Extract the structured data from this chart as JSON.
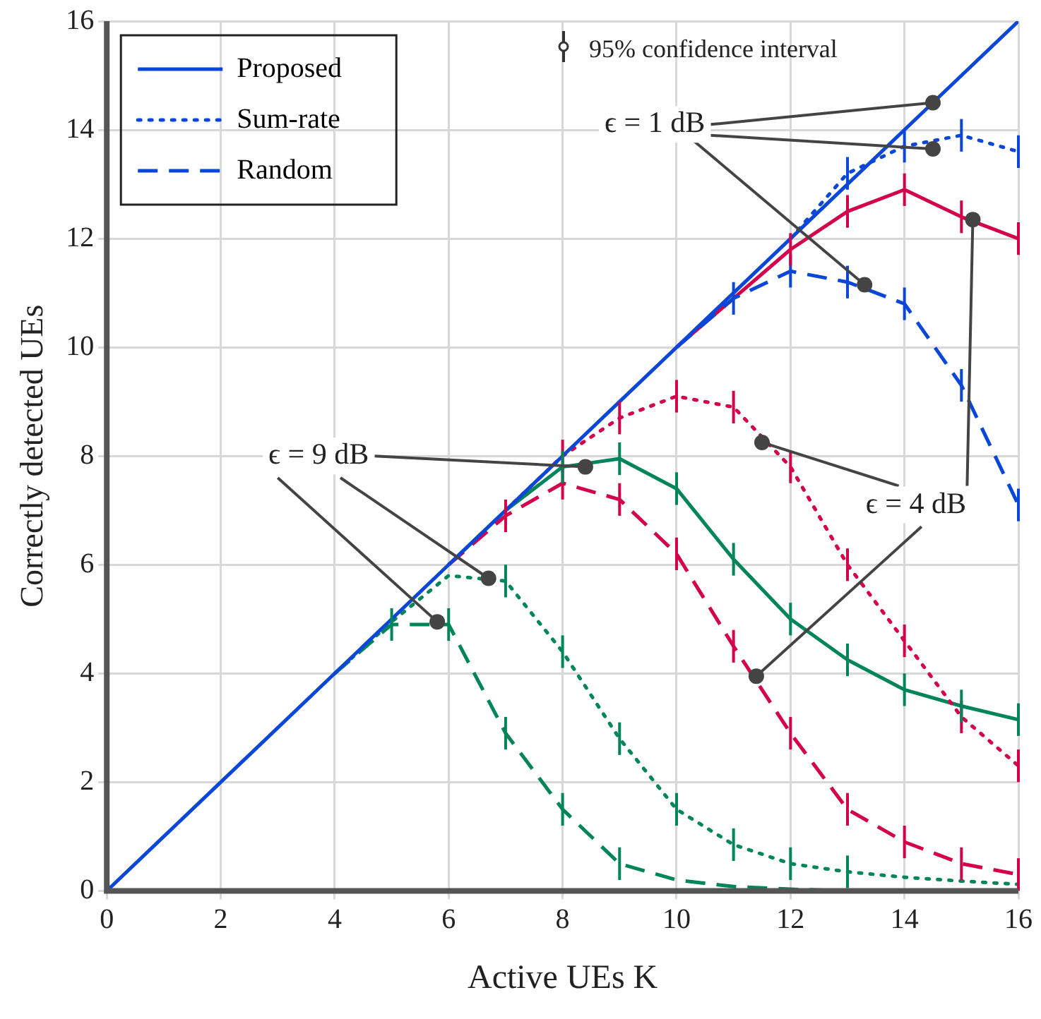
{
  "chart_data": {
    "type": "line",
    "xlabel": "Active UEs K",
    "ylabel": "Correctly detected UEs",
    "x": [
      0,
      1,
      2,
      3,
      4,
      5,
      6,
      7,
      8,
      9,
      10,
      11,
      12,
      13,
      14,
      15,
      16
    ],
    "xlim": [
      0,
      16
    ],
    "xticks": [
      0,
      2,
      4,
      6,
      8,
      10,
      12,
      14,
      16
    ],
    "ylim": [
      0,
      16
    ],
    "yticks": [
      0,
      2,
      4,
      6,
      8,
      10,
      12,
      14,
      16
    ],
    "grid": true,
    "legend": "top left",
    "marker": "none",
    "annotations": [
      "95% confidence interval",
      {
        "text": "ϵ = 1 dB",
        "x": 14.5,
        "y": 14.5
      },
      {
        "text": "ϵ = 4 dB",
        "x": 15.2,
        "y": 12.35
      },
      {
        "text": "ϵ = 9 dB",
        "x": 8.4,
        "y": 7.8
      }
    ],
    "series": [
      {
        "name": "Proposed",
        "color": "#0a47d8",
        "line_style": "solid",
        "values": [
          0,
          1,
          2,
          3,
          4,
          5,
          6,
          7,
          8,
          9,
          10,
          11,
          12,
          13,
          14,
          15,
          16
        ]
      },
      {
        "name": "Sum-rate",
        "color": "#0a47d8",
        "line_style": "dotted",
        "values": [
          null,
          null,
          null,
          null,
          null,
          null,
          null,
          null,
          null,
          null,
          null,
          null,
          12,
          13.2,
          13.7,
          13.9,
          13.6
        ],
        "errors": [
          null,
          null,
          null,
          null,
          null,
          null,
          null,
          null,
          null,
          null,
          null,
          null,
          null,
          0.3,
          0.3,
          0.3,
          0.3
        ]
      },
      {
        "name": "Random",
        "color": "#0a47d8",
        "line_style": "dashed",
        "values": [
          null,
          null,
          null,
          null,
          null,
          null,
          null,
          null,
          null,
          null,
          10,
          10.9,
          11.4,
          11.2,
          10.8,
          9.3,
          7.1
        ],
        "errors": [
          null,
          null,
          null,
          null,
          null,
          null,
          null,
          null,
          null,
          null,
          null,
          0.3,
          0.3,
          0.3,
          0.3,
          0.3,
          0.3
        ]
      },
      {
        "color": "#d4004a",
        "line_style": "solid",
        "values": [
          null,
          null,
          null,
          null,
          null,
          null,
          null,
          null,
          null,
          null,
          10,
          10.9,
          11.8,
          12.5,
          12.9,
          12.4,
          12.0
        ],
        "errors": [
          null,
          null,
          null,
          null,
          null,
          null,
          null,
          null,
          null,
          null,
          null,
          null,
          0.3,
          0.3,
          0.3,
          0.3,
          0.3
        ]
      },
      {
        "color": "#d4004a",
        "line_style": "dotted",
        "values": [
          null,
          null,
          null,
          null,
          null,
          null,
          null,
          7,
          8,
          8.7,
          9.1,
          8.9,
          7.8,
          6.0,
          4.6,
          3.2,
          2.3
        ],
        "errors": [
          null,
          null,
          null,
          null,
          null,
          null,
          null,
          null,
          0.3,
          0.3,
          0.3,
          0.3,
          0.3,
          0.3,
          0.3,
          0.3,
          0.3
        ]
      },
      {
        "color": "#d4004a",
        "line_style": "dashed",
        "values": [
          null,
          null,
          null,
          null,
          null,
          null,
          6,
          6.9,
          7.5,
          7.2,
          6.2,
          4.5,
          2.9,
          1.5,
          0.9,
          0.5,
          0.3
        ],
        "errors": [
          null,
          null,
          null,
          null,
          null,
          null,
          null,
          0.3,
          0.3,
          0.3,
          0.3,
          0.3,
          0.3,
          0.3,
          0.3,
          0.3,
          0.3
        ]
      },
      {
        "color": "#00845a",
        "line_style": "solid",
        "values": [
          null,
          null,
          null,
          null,
          null,
          null,
          6,
          7,
          7.8,
          7.95,
          7.4,
          6.1,
          5.0,
          4.25,
          3.7,
          3.4,
          3.15
        ],
        "errors": [
          null,
          null,
          null,
          null,
          null,
          null,
          null,
          null,
          0.3,
          0.3,
          0.3,
          0.3,
          0.3,
          0.3,
          0.3,
          0.3,
          0.3
        ]
      },
      {
        "color": "#00845a",
        "line_style": "dotted",
        "values": [
          null,
          null,
          null,
          null,
          4,
          4.95,
          5.8,
          5.7,
          4.4,
          2.8,
          1.5,
          0.85,
          0.5,
          0.35,
          0.25,
          0.18,
          0.12
        ],
        "errors": [
          null,
          null,
          null,
          null,
          null,
          null,
          null,
          0.3,
          0.3,
          0.3,
          0.3,
          0.3,
          0.3,
          0.3,
          null,
          null,
          null
        ]
      },
      {
        "color": "#00845a",
        "line_style": "dashed",
        "values": [
          null,
          null,
          null,
          null,
          4,
          4.9,
          4.9,
          2.9,
          1.5,
          0.5,
          0.2,
          0.08,
          0.03,
          0,
          0,
          0,
          0
        ],
        "errors": [
          null,
          null,
          null,
          null,
          null,
          0.3,
          0.3,
          0.3,
          0.3,
          0.3,
          null,
          null,
          null,
          null,
          null,
          null,
          null
        ]
      }
    ]
  }
}
